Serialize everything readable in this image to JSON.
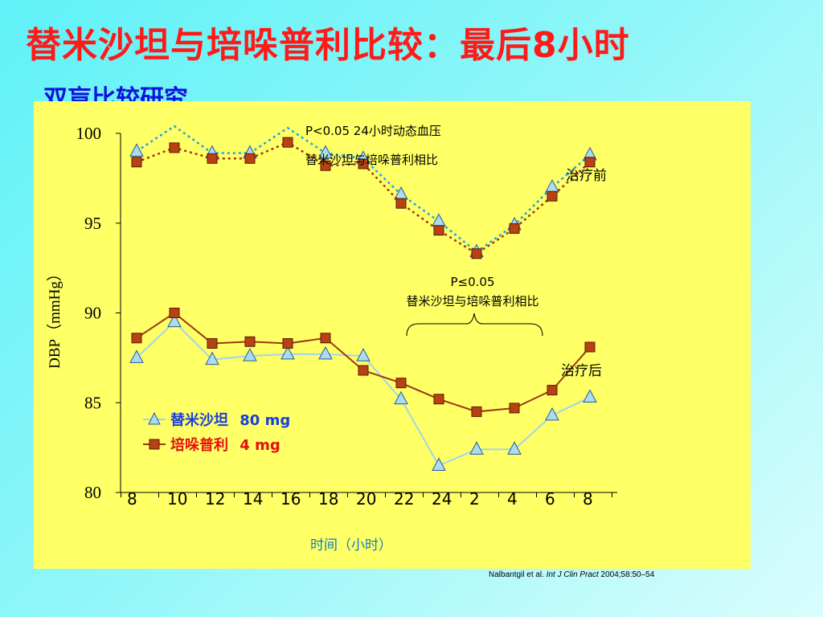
{
  "slide": {
    "title": "替米沙坦与培哚普利比较：最后8小时",
    "subtitle": "双盲比较研究",
    "citation": {
      "authors": "Nalbantgil et al. ",
      "journal": "Int J Clin Pract",
      "details": " 2004;58:50–54"
    }
  },
  "colors": {
    "title": "#ff1a1a",
    "subtitle": "#1010dd",
    "panel": "#ffff66",
    "telmisartan_line": "#9fd4f0",
    "telmisartan_marker": "#a9dcef",
    "telmisartan_before": "#1aa3e6",
    "perindopril": "#9a3a12",
    "perindopril_marker": "#b84212",
    "legend_tel": "#1a3fd6",
    "legend_per": "#e31010"
  },
  "chart_data": {
    "type": "line",
    "ylabel": "DBP（mmHg）",
    "xlabel": "时间（小时）",
    "ylim": [
      80,
      100
    ],
    "yticks": [
      80,
      85,
      90,
      95,
      100
    ],
    "x_tick_labels": [
      "8",
      "10",
      "12",
      "14",
      "16",
      "18",
      "20",
      "22",
      "24",
      "2",
      "4",
      "6",
      "8"
    ],
    "x_positions": [
      0,
      1,
      2,
      3,
      4,
      5,
      6,
      7,
      8,
      9,
      10,
      11,
      12
    ],
    "series": [
      {
        "name": "替米沙坦 80 mg",
        "group": "治疗后",
        "marker": "triangle",
        "values": [
          87.5,
          89.5,
          87.4,
          87.6,
          87.7,
          87.7,
          87.6,
          85.2,
          81.5,
          82.4,
          82.4,
          84.3,
          85.3
        ]
      },
      {
        "name": "培哚普利 4 mg",
        "group": "治疗后",
        "marker": "square",
        "values": [
          88.6,
          90.0,
          88.3,
          88.4,
          88.3,
          88.6,
          86.8,
          86.1,
          85.2,
          84.5,
          84.7,
          85.7,
          88.1
        ]
      },
      {
        "group": "治疗前",
        "marker": "triangle",
        "style": "dotted",
        "values": [
          99.0,
          100.4,
          98.9,
          98.9,
          100.3,
          98.9,
          98.6,
          96.6,
          95.1,
          93.4,
          94.9,
          97.0,
          98.8
        ]
      },
      {
        "group": "治疗前",
        "marker": "square",
        "style": "dotted",
        "values": [
          98.4,
          99.2,
          98.6,
          98.6,
          99.5,
          98.2,
          98.3,
          96.1,
          94.6,
          93.3,
          94.7,
          96.5,
          98.4
        ]
      }
    ],
    "annotations": {
      "top_p": "P<0.05 24小时动态血压",
      "top_text": "替米沙坦与培哚普利相比",
      "mid_p": "P≤0.05",
      "mid_text": "替米沙坦与培哚普利相比",
      "before_label": "治疗前",
      "after_label": "治疗后"
    },
    "legend": [
      {
        "name": "替米沙坦",
        "dose": "80 mg",
        "marker": "triangle"
      },
      {
        "name": "培哚普利",
        "dose": "4 mg",
        "marker": "square"
      }
    ]
  }
}
